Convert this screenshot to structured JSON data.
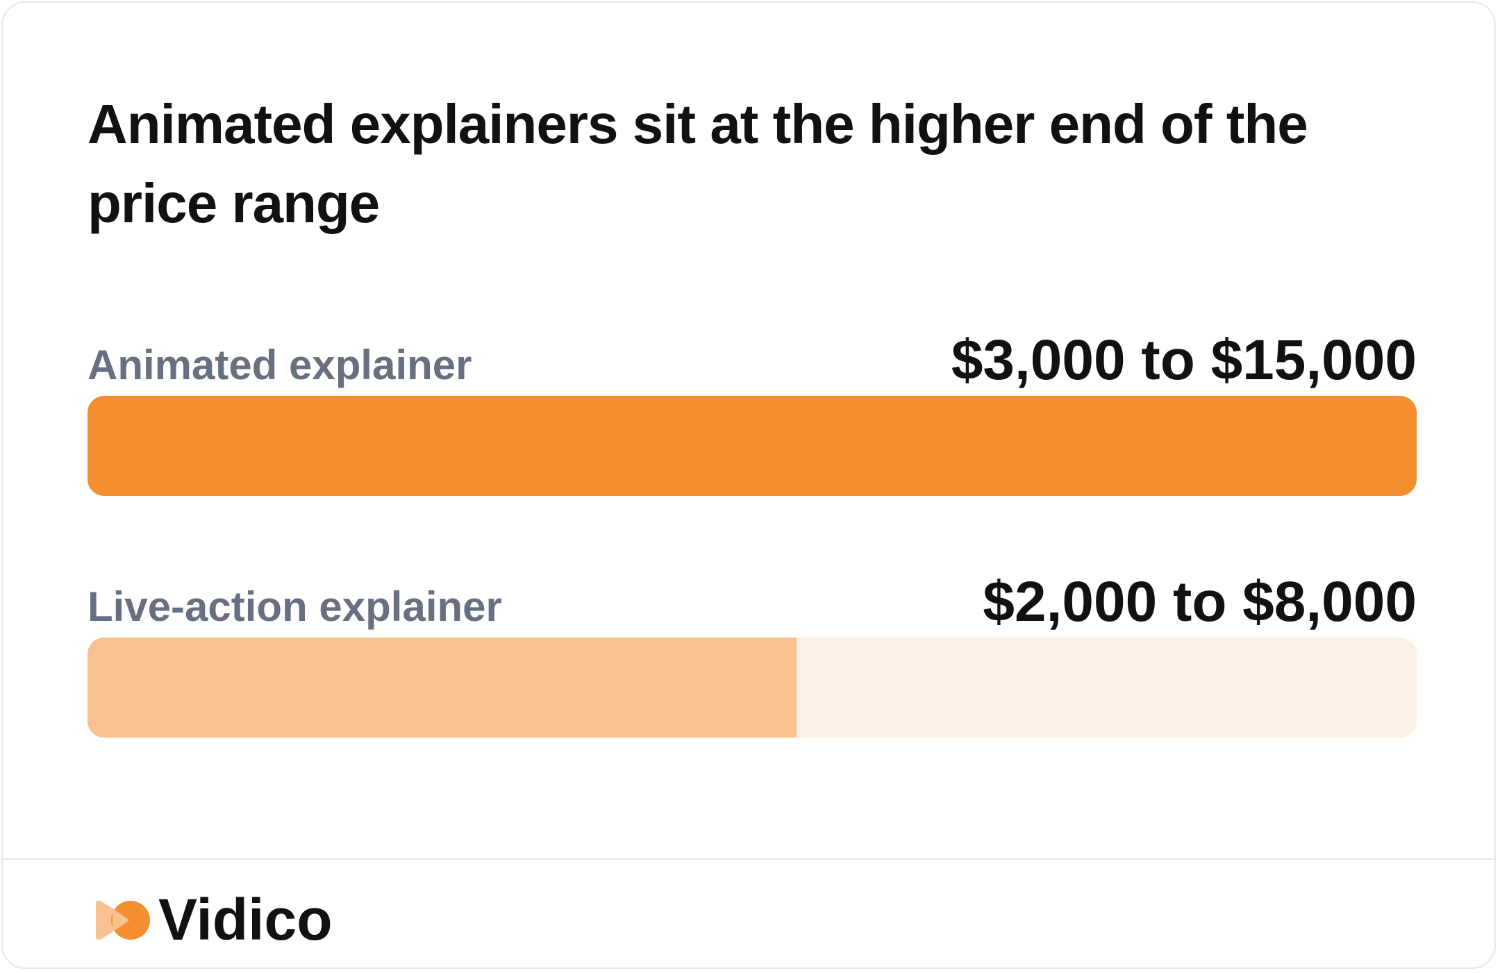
{
  "chart_data": {
    "type": "bar",
    "orientation": "horizontal",
    "title": "Animated explainers sit at the higher end of the price range",
    "categories": [
      "Animated explainer",
      "Live-action explainer"
    ],
    "values": [
      15000,
      8000
    ],
    "value_labels": [
      "$3,000 to $15,000",
      "$2,000 to $8,000"
    ],
    "colors": [
      "#f48f31",
      "#f8c190"
    ],
    "track_color": "#fdf0e6",
    "xlim": [
      0,
      15000
    ]
  },
  "footer": {
    "brand": "Vidico"
  }
}
